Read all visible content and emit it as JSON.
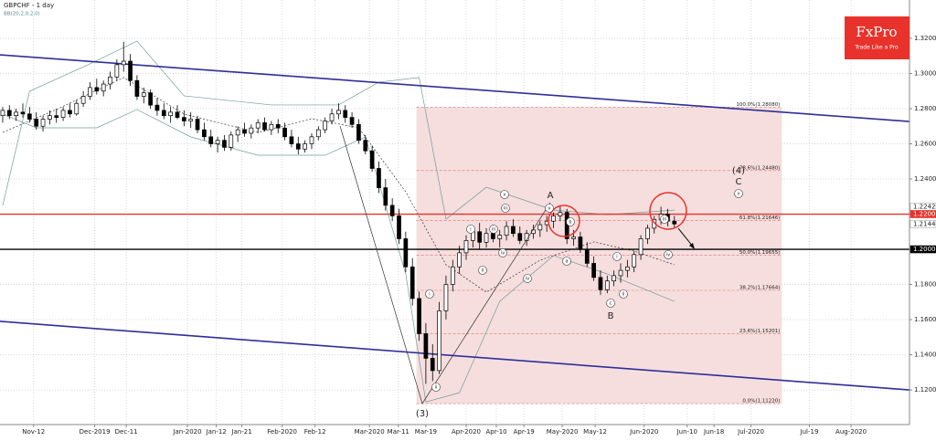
{
  "chart_data": {
    "type": "candlestick",
    "title": "GBPCHF - 1 day",
    "subtitle": "BB(20,2,0,2,0)",
    "brand": "FxPro",
    "tagline": "Trade Like a Pro",
    "xlim": [
      -0.4,
      135
    ],
    "ylim": [
      1.1003,
      1.3418
    ],
    "xticks": [
      {
        "value": 4.6,
        "label": "Nov-12"
      },
      {
        "value": 13.7,
        "label": "Dec-2019"
      },
      {
        "value": 18.4,
        "label": "Dec-11"
      },
      {
        "value": 27.5,
        "label": "Jan-2020"
      },
      {
        "value": 31.8,
        "label": "Jan-12"
      },
      {
        "value": 35.6,
        "label": "Jan-21"
      },
      {
        "value": 41.6,
        "label": "Feb-2020"
      },
      {
        "value": 46.5,
        "label": "Feb-12"
      },
      {
        "value": 54.6,
        "label": "Mar-2020"
      },
      {
        "value": 58.9,
        "label": "Mar-11"
      },
      {
        "value": 63,
        "label": "Mar-19"
      },
      {
        "value": 69,
        "label": "Apr-2020"
      },
      {
        "value": 73.5,
        "label": "Apr-10"
      },
      {
        "value": 77.6,
        "label": "Apr-19"
      },
      {
        "value": 83.3,
        "label": "May-2020"
      },
      {
        "value": 88.2,
        "label": "May-12"
      },
      {
        "value": 95.5,
        "label": "Jun-2020"
      },
      {
        "value": 101.9,
        "label": "Jun-10"
      },
      {
        "value": 105.9,
        "label": "Jun-18"
      },
      {
        "value": 111.4,
        "label": "Jul-2020"
      },
      {
        "value": 120.1,
        "label": "Jul-19"
      },
      {
        "value": 126.3,
        "label": "Aug-2020"
      }
    ],
    "yticks": [
      {
        "value": 1.12,
        "label": "1.12000"
      },
      {
        "value": 1.14,
        "label": "1.14000"
      },
      {
        "value": 1.16,
        "label": "1.16000"
      },
      {
        "value": 1.18,
        "label": "1.18000"
      },
      {
        "value": 1.2,
        "label": "1.20000"
      },
      {
        "value": 1.22,
        "label": "1.22000"
      },
      {
        "value": 1.24,
        "label": "1.24000"
      },
      {
        "value": 1.26,
        "label": "1.26000"
      },
      {
        "value": 1.28,
        "label": "1.28000"
      },
      {
        "value": 1.3,
        "label": "1.30000"
      },
      {
        "value": 1.32,
        "label": "1.32000"
      }
    ],
    "grid": true,
    "up_color": "#ffffff",
    "down_color": "#000000",
    "ohlc": [
      [
        1.276,
        1.281,
        1.272,
        1.279
      ],
      [
        1.279,
        1.282,
        1.274,
        1.276
      ],
      [
        1.276,
        1.28,
        1.273,
        1.278
      ],
      [
        1.278,
        1.283,
        1.275,
        1.277
      ],
      [
        1.277,
        1.281,
        1.272,
        1.274
      ],
      [
        1.274,
        1.278,
        1.268,
        1.27
      ],
      [
        1.27,
        1.276,
        1.267,
        1.274
      ],
      [
        1.274,
        1.279,
        1.271,
        1.276
      ],
      [
        1.276,
        1.28,
        1.272,
        1.275
      ],
      [
        1.275,
        1.281,
        1.273,
        1.279
      ],
      [
        1.279,
        1.283,
        1.275,
        1.277
      ],
      [
        1.277,
        1.285,
        1.276,
        1.283
      ],
      [
        1.283,
        1.29,
        1.281,
        1.287
      ],
      [
        1.287,
        1.295,
        1.285,
        1.292
      ],
      [
        1.292,
        1.297,
        1.288,
        1.29
      ],
      [
        1.29,
        1.296,
        1.287,
        1.294
      ],
      [
        1.294,
        1.301,
        1.291,
        1.298
      ],
      [
        1.298,
        1.308,
        1.296,
        1.305
      ],
      [
        1.305,
        1.318,
        1.301,
        1.307
      ],
      [
        1.307,
        1.311,
        1.293,
        1.296
      ],
      [
        1.296,
        1.299,
        1.285,
        1.287
      ],
      [
        1.287,
        1.292,
        1.283,
        1.289
      ],
      [
        1.289,
        1.291,
        1.28,
        1.282
      ],
      [
        1.282,
        1.286,
        1.276,
        1.279
      ],
      [
        1.279,
        1.283,
        1.274,
        1.276
      ],
      [
        1.276,
        1.281,
        1.272,
        1.278
      ],
      [
        1.278,
        1.282,
        1.274,
        1.275
      ],
      [
        1.275,
        1.279,
        1.27,
        1.273
      ],
      [
        1.273,
        1.278,
        1.269,
        1.274
      ],
      [
        1.274,
        1.276,
        1.266,
        1.268
      ],
      [
        1.268,
        1.272,
        1.262,
        1.264
      ],
      [
        1.264,
        1.268,
        1.258,
        1.26
      ],
      [
        1.26,
        1.264,
        1.255,
        1.262
      ],
      [
        1.262,
        1.265,
        1.256,
        1.258
      ],
      [
        1.258,
        1.267,
        1.256,
        1.265
      ],
      [
        1.265,
        1.27,
        1.261,
        1.268
      ],
      [
        1.268,
        1.272,
        1.264,
        1.266
      ],
      [
        1.266,
        1.271,
        1.263,
        1.269
      ],
      [
        1.269,
        1.274,
        1.266,
        1.272
      ],
      [
        1.272,
        1.275,
        1.267,
        1.268
      ],
      [
        1.268,
        1.273,
        1.265,
        1.271
      ],
      [
        1.271,
        1.274,
        1.266,
        1.269
      ],
      [
        1.269,
        1.272,
        1.262,
        1.264
      ],
      [
        1.264,
        1.268,
        1.258,
        1.26
      ],
      [
        1.26,
        1.264,
        1.254,
        1.257
      ],
      [
        1.257,
        1.262,
        1.255,
        1.26
      ],
      [
        1.26,
        1.266,
        1.257,
        1.264
      ],
      [
        1.264,
        1.27,
        1.262,
        1.268
      ],
      [
        1.268,
        1.275,
        1.266,
        1.273
      ],
      [
        1.273,
        1.28,
        1.271,
        1.277
      ],
      [
        1.277,
        1.283,
        1.274,
        1.279
      ],
      [
        1.279,
        1.282,
        1.272,
        1.275
      ],
      [
        1.275,
        1.278,
        1.269,
        1.271
      ],
      [
        1.271,
        1.274,
        1.26,
        1.262
      ],
      [
        1.262,
        1.265,
        1.254,
        1.256
      ],
      [
        1.256,
        1.259,
        1.244,
        1.246
      ],
      [
        1.246,
        1.25,
        1.232,
        1.235
      ],
      [
        1.235,
        1.24,
        1.222,
        1.225
      ],
      [
        1.225,
        1.229,
        1.216,
        1.219
      ],
      [
        1.219,
        1.223,
        1.203,
        1.206
      ],
      [
        1.206,
        1.21,
        1.187,
        1.19
      ],
      [
        1.19,
        1.195,
        1.168,
        1.172
      ],
      [
        1.172,
        1.176,
        1.148,
        1.152
      ],
      [
        1.152,
        1.158,
        1.1235,
        1.138
      ],
      [
        1.138,
        1.146,
        1.125,
        1.131
      ],
      [
        1.131,
        1.17,
        1.129,
        1.165
      ],
      [
        1.165,
        1.185,
        1.16,
        1.18
      ],
      [
        1.18,
        1.194,
        1.176,
        1.19
      ],
      [
        1.19,
        1.202,
        1.186,
        1.198
      ],
      [
        1.198,
        1.208,
        1.194,
        1.205
      ],
      [
        1.205,
        1.213,
        1.201,
        1.21
      ],
      [
        1.21,
        1.215,
        1.2,
        1.204
      ],
      [
        1.204,
        1.212,
        1.201,
        1.209
      ],
      [
        1.209,
        1.214,
        1.204,
        1.206
      ],
      [
        1.206,
        1.211,
        1.201,
        1.208
      ],
      [
        1.208,
        1.216,
        1.205,
        1.213
      ],
      [
        1.213,
        1.217,
        1.207,
        1.209
      ],
      [
        1.209,
        1.213,
        1.203,
        1.205
      ],
      [
        1.205,
        1.211,
        1.202,
        1.209
      ],
      [
        1.209,
        1.214,
        1.206,
        1.211
      ],
      [
        1.211,
        1.216,
        1.207,
        1.214
      ],
      [
        1.214,
        1.219,
        1.21,
        1.216
      ],
      [
        1.216,
        1.221,
        1.212,
        1.219
      ],
      [
        1.219,
        1.225,
        1.216,
        1.221
      ],
      [
        1.221,
        1.223,
        1.203,
        1.206
      ],
      [
        1.206,
        1.211,
        1.202,
        1.207
      ],
      [
        1.207,
        1.21,
        1.198,
        1.2
      ],
      [
        1.2,
        1.204,
        1.19,
        1.192
      ],
      [
        1.192,
        1.196,
        1.182,
        1.184
      ],
      [
        1.184,
        1.188,
        1.174,
        1.177
      ],
      [
        1.177,
        1.185,
        1.175,
        1.182
      ],
      [
        1.182,
        1.188,
        1.179,
        1.185
      ],
      [
        1.185,
        1.192,
        1.181,
        1.188
      ],
      [
        1.188,
        1.194,
        1.184,
        1.19
      ],
      [
        1.19,
        1.199,
        1.187,
        1.197
      ],
      [
        1.197,
        1.208,
        1.194,
        1.206
      ],
      [
        1.206,
        1.214,
        1.203,
        1.212
      ],
      [
        1.212,
        1.219,
        1.209,
        1.217
      ],
      [
        1.217,
        1.2242,
        1.214,
        1.22
      ],
      [
        1.22,
        1.223,
        1.213,
        1.216
      ],
      [
        1.216,
        1.219,
        1.212,
        1.2144
      ]
    ],
    "bands": [
      {
        "color": "#6f9c98",
        "x": [
          0,
          4,
          13,
          20,
          27,
          40,
          50,
          56,
          62,
          66,
          72,
          82,
          90,
          100
        ],
        "values": [
          1.2249,
          1.2899,
          1.3055,
          1.3184,
          1.2873,
          1.2821,
          1.2821,
          1.2951,
          1.2977,
          1.2171,
          1.2353,
          1.2223,
          1.2197,
          1.2223
        ]
      },
      {
        "color": "#333333",
        "dashed": true,
        "x": [
          0,
          8,
          18,
          27,
          38,
          46,
          53,
          60,
          66,
          72,
          80,
          88,
          94,
          100
        ],
        "values": [
          1.2665,
          1.2795,
          1.2977,
          1.2769,
          1.2665,
          1.2743,
          1.2691,
          1.2327,
          1.1912,
          1.1756,
          1.1938,
          1.2042,
          1.199,
          1.1912
        ]
      },
      {
        "color": "#6f9c98",
        "x": [
          0,
          5,
          14,
          20,
          28,
          38,
          48,
          54,
          60,
          63,
          68,
          74,
          82,
          90,
          100
        ],
        "values": [
          1.2769,
          1.2691,
          1.2691,
          1.2795,
          1.2639,
          1.2535,
          1.2535,
          1.2639,
          1.186,
          1.1132,
          1.1184,
          1.1704,
          1.1964,
          1.186,
          1.1704
        ]
      }
    ],
    "trendlines": [
      {
        "color": "#2e2e9a",
        "x": [
          -0.4,
          135
        ],
        "values": [
          1.3106,
          1.2727
        ]
      },
      {
        "color": "#2e2e9a",
        "x": [
          -0.4,
          135
        ],
        "values": [
          1.159,
          1.12
        ]
      }
    ],
    "levels": [
      {
        "value": 1.22,
        "color": "#e8322b"
      },
      {
        "value": 1.2,
        "color": "#000000"
      }
    ],
    "fibonacci": {
      "x": [
        61.6,
        116
      ],
      "color": "#f6dede",
      "levels": [
        {
          "value": 1.2808,
          "label": "100.0%(1.28080)"
        },
        {
          "value": 1.2448,
          "label": "78.6%(1.24480)"
        },
        {
          "value": 1.21646,
          "label": "61.8%(1.21646)"
        },
        {
          "value": 1.19655,
          "label": "50.0%(1.19655)"
        },
        {
          "value": 1.17664,
          "label": "38.2%(1.17664)"
        },
        {
          "value": 1.15201,
          "label": "23.6%(1.15201)"
        },
        {
          "value": 1.1122,
          "label": "0.0%(1.11220)"
        }
      ]
    },
    "price_labels": [
      {
        "value": 1.22422,
        "label": "1.22422",
        "color": "#ffffff"
      },
      {
        "value": 1.22,
        "label": "1.22000",
        "color": "#e8322b"
      },
      {
        "value": 1.2144,
        "label": "1.21440",
        "color": "#ffffff"
      },
      {
        "value": 1.2,
        "label": "1.20000",
        "color": "#000000"
      }
    ],
    "annotations": [
      "(3)",
      "i",
      "ii",
      "i",
      "ii",
      "iii",
      "iv",
      "iii",
      "v",
      "iv",
      "v",
      "A",
      "b",
      "a",
      "i",
      "ii",
      "c",
      "B",
      "iii",
      "iv",
      "(4)",
      "C",
      "v"
    ]
  }
}
